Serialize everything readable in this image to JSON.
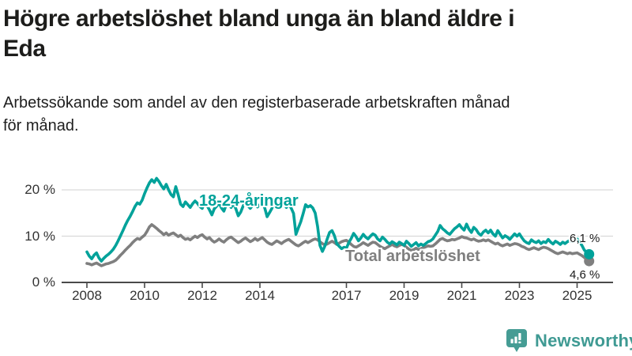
{
  "header": {
    "title": "Högre arbetslöshet bland unga än bland äldre i Eda",
    "title_lines": [
      "Högre arbetslöshet bland unga än bland äldre i",
      "Eda"
    ],
    "subtitle": "Arbetssökande som andel av den registerbaserade arbetskraften månad för månad.",
    "subtitle_lines": [
      "Arbetssökande som andel av den registerbaserade arbetskraften månad",
      "för månad."
    ]
  },
  "chart_data": {
    "type": "line",
    "x_unit": "month",
    "x_range": [
      2008.0,
      2025.42
    ],
    "ylim": [
      0,
      23
    ],
    "grid": true,
    "grid_color": "#d9d9d9",
    "axis_color": "#4a4a4a",
    "tick_label_color": "#333333",
    "yticks": [
      {
        "value": 0,
        "label": "0 %"
      },
      {
        "value": 10,
        "label": "10 %"
      },
      {
        "value": 20,
        "label": "20 %"
      }
    ],
    "xticks": [
      {
        "value": 2008,
        "label": "2008"
      },
      {
        "value": 2010,
        "label": "2010"
      },
      {
        "value": 2012,
        "label": "2012"
      },
      {
        "value": 2014,
        "label": "2014"
      },
      {
        "value": 2017,
        "label": "2017"
      },
      {
        "value": 2019,
        "label": "2019"
      },
      {
        "value": 2021,
        "label": "2021"
      },
      {
        "value": 2023,
        "label": "2023"
      },
      {
        "value": 2025,
        "label": "2025"
      }
    ],
    "series": [
      {
        "name": "Total arbetslöshet",
        "label": "Total arbetslöshet",
        "color": "#7f7f7f",
        "start_year": 2008,
        "end_value": 4.6,
        "end_label": "4,6 %",
        "values": [
          4.1,
          4.0,
          3.8,
          4.0,
          4.2,
          3.9,
          3.6,
          3.8,
          4.0,
          4.1,
          4.3,
          4.5,
          4.8,
          5.3,
          5.9,
          6.4,
          7.0,
          7.5,
          8.0,
          8.6,
          9.1,
          9.5,
          9.3,
          9.8,
          10.2,
          11.0,
          12.0,
          12.5,
          12.1,
          11.7,
          11.2,
          10.8,
          10.3,
          10.7,
          10.2,
          10.5,
          10.7,
          10.3,
          9.9,
          10.2,
          9.7,
          9.3,
          9.5,
          9.2,
          9.6,
          10.0,
          9.7,
          10.1,
          10.3,
          9.8,
          9.4,
          9.7,
          9.1,
          8.7,
          9.0,
          9.4,
          9.0,
          8.7,
          9.2,
          9.6,
          9.8,
          9.4,
          9.0,
          8.6,
          8.9,
          9.3,
          9.6,
          9.2,
          8.8,
          9.1,
          9.5,
          9.1,
          9.4,
          9.7,
          9.2,
          8.7,
          8.4,
          8.2,
          8.6,
          9.0,
          8.7,
          8.4,
          8.8,
          9.1,
          9.3,
          8.9,
          8.5,
          8.1,
          7.9,
          8.2,
          8.6,
          8.9,
          8.6,
          8.9,
          9.2,
          9.4,
          9.2,
          8.8,
          8.4,
          8.1,
          8.3,
          8.6,
          8.9,
          8.6,
          8.2,
          8.5,
          8.8,
          9.0,
          9.1,
          8.7,
          8.2,
          7.8,
          7.6,
          7.9,
          8.2,
          8.6,
          8.3,
          8.0,
          8.4,
          8.7,
          8.6,
          8.2,
          7.8,
          7.5,
          7.3,
          7.6,
          7.9,
          8.2,
          7.9,
          7.7,
          8.0,
          8.2,
          8.0,
          7.6,
          7.2,
          6.9,
          7.1,
          7.4,
          7.1,
          7.3,
          7.5,
          7.7,
          7.9,
          7.8,
          7.9,
          8.3,
          8.8,
          9.3,
          9.5,
          9.2,
          9.0,
          9.1,
          9.3,
          9.2,
          9.4,
          9.6,
          9.9,
          9.7,
          9.6,
          9.4,
          9.2,
          9.4,
          9.1,
          8.9,
          9.0,
          9.2,
          9.0,
          9.2,
          8.9,
          8.6,
          8.3,
          8.5,
          8.1,
          7.9,
          8.1,
          8.3,
          8.0,
          8.2,
          8.4,
          8.3,
          8.1,
          7.8,
          7.6,
          7.3,
          7.1,
          7.3,
          7.5,
          7.3,
          7.1,
          7.4,
          7.6,
          7.5,
          7.3,
          7.0,
          6.7,
          6.4,
          6.2,
          6.4,
          6.6,
          6.4,
          6.2,
          6.4,
          6.2,
          6.3,
          6.4,
          6.1,
          5.8,
          5.4,
          5.0,
          4.6
        ]
      },
      {
        "name": "18-24-åringar",
        "label": "18-24-åringar",
        "color": "#00a29a",
        "start_year": 2008,
        "end_value": 6.1,
        "end_label": "6,1 %",
        "values": [
          6.6,
          5.7,
          5.1,
          5.9,
          6.4,
          5.3,
          4.6,
          5.2,
          5.7,
          6.1,
          6.6,
          7.2,
          8.0,
          9.0,
          10.1,
          11.2,
          12.4,
          13.4,
          14.3,
          15.3,
          16.4,
          17.2,
          16.9,
          17.8,
          19.2,
          20.4,
          21.5,
          22.2,
          21.6,
          22.5,
          21.8,
          20.9,
          20.2,
          21.2,
          20.0,
          19.0,
          18.5,
          20.7,
          18.9,
          16.9,
          16.4,
          17.4,
          16.8,
          16.2,
          17.0,
          17.6,
          17.1,
          16.4,
          16.0,
          17.3,
          16.6,
          15.7,
          14.6,
          15.9,
          16.5,
          17.2,
          16.1,
          15.4,
          16.8,
          17.0,
          16.2,
          17.1,
          15.9,
          14.4,
          15.2,
          16.5,
          17.3,
          16.6,
          16.0,
          16.7,
          17.2,
          16.3,
          16.8,
          17.4,
          16.1,
          14.2,
          15.1,
          16.0,
          17.0,
          16.6,
          15.9,
          16.3,
          16.9,
          16.2,
          16.8,
          16.1,
          14.9,
          10.4,
          11.8,
          13.1,
          14.9,
          16.8,
          16.3,
          16.6,
          16.1,
          15.0,
          12.1,
          8.0,
          6.7,
          7.8,
          9.4,
          10.8,
          11.2,
          10.1,
          8.4,
          7.8,
          7.3,
          7.6,
          7.4,
          8.6,
          9.5,
          10.6,
          9.9,
          9.0,
          9.6,
          10.4,
          9.8,
          9.4,
          10.0,
          10.5,
          10.2,
          9.4,
          9.0,
          9.8,
          9.3,
          8.7,
          8.3,
          8.8,
          8.5,
          8.1,
          8.7,
          8.4,
          8.0,
          8.9,
          8.4,
          7.8,
          8.2,
          8.6,
          7.9,
          8.3,
          8.0,
          8.4,
          8.8,
          9.0,
          9.4,
          10.2,
          11.0,
          12.3,
          11.6,
          11.2,
          10.7,
          10.4,
          11.0,
          11.6,
          12.0,
          12.5,
          11.8,
          11.3,
          12.6,
          11.5,
          10.8,
          11.9,
          11.4,
          10.6,
          10.2,
          10.9,
          11.3,
          10.7,
          11.3,
          10.5,
          10.0,
          11.2,
          10.4,
          9.6,
          10.1,
          9.8,
          9.3,
          9.9,
          10.5,
          10.0,
          10.5,
          9.7,
          9.0,
          8.6,
          8.4,
          9.2,
          8.8,
          8.6,
          9.0,
          8.4,
          8.8,
          8.6,
          9.3,
          8.7,
          8.3,
          8.9,
          8.6,
          8.2,
          8.7,
          8.4,
          8.8,
          9.1,
          8.8,
          9.2,
          9.4,
          8.8,
          8.0,
          7.0,
          6.5,
          6.1
        ]
      }
    ]
  },
  "footer": {
    "logo_text": "Newsworthy",
    "logo_icon": "bar-chart-speech-bubble-icon",
    "logo_color": "#459c94",
    "logo_text_color": "#3f9a93"
  }
}
